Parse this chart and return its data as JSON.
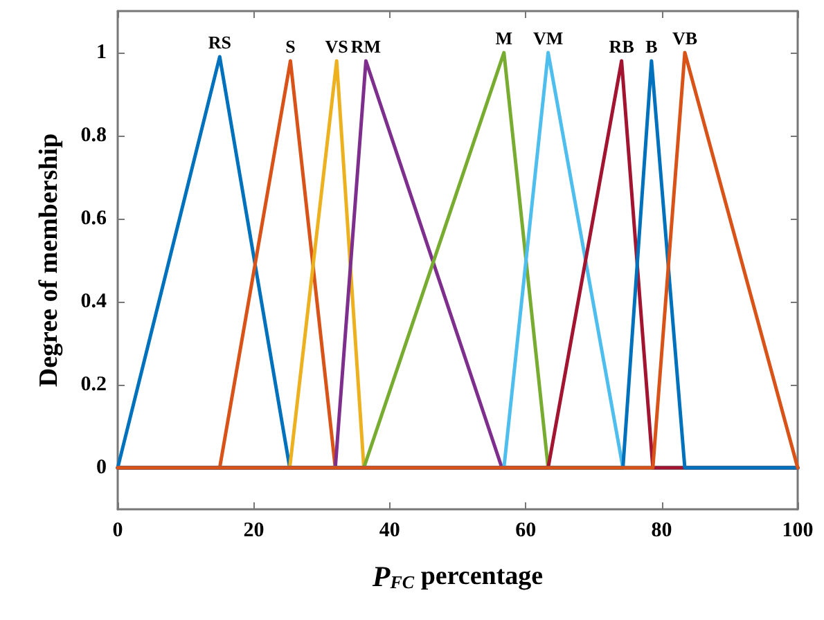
{
  "chart_data": {
    "type": "line",
    "xlabel": "P$_{FC}$ percentage",
    "ylabel": "Degree of membership",
    "xlim": [
      0,
      100
    ],
    "xticks": [
      0,
      20,
      40,
      60,
      80,
      100
    ],
    "ylim": [
      -0.1,
      1.1
    ],
    "yticks": [
      0,
      0.2,
      0.4,
      0.6,
      0.8,
      1
    ],
    "grid": false,
    "legend": false,
    "marker": "none",
    "line_style": "solid",
    "series": [
      {
        "name": "RS",
        "color": "#0072bd",
        "x": [
          0,
          15,
          25.3,
          100
        ],
        "values": [
          0,
          0.99,
          0,
          0
        ]
      },
      {
        "name": "S",
        "color": "#d95319",
        "x": [
          0,
          15,
          25.4,
          32,
          100
        ],
        "values": [
          0,
          0,
          0.98,
          0,
          0
        ]
      },
      {
        "name": "VS",
        "color": "#edb120",
        "x": [
          0,
          25.3,
          32.2,
          36.2,
          100
        ],
        "values": [
          0,
          0,
          0.98,
          0,
          0
        ]
      },
      {
        "name": "RM",
        "color": "#7e2f8e",
        "x": [
          0,
          32,
          36.5,
          56.5,
          100
        ],
        "values": [
          0,
          0,
          0.98,
          0,
          0
        ]
      },
      {
        "name": "M",
        "color": "#77ac30",
        "x": [
          0,
          36.2,
          56.8,
          63.3,
          100
        ],
        "values": [
          0,
          0,
          1,
          0,
          0
        ]
      },
      {
        "name": "VM",
        "color": "#4dbeee",
        "x": [
          0,
          56.8,
          63.3,
          74.3,
          100
        ],
        "values": [
          0,
          0,
          1,
          0,
          0
        ]
      },
      {
        "name": "RB",
        "color": "#a2142f",
        "x": [
          0,
          63.3,
          74.1,
          78.7,
          100
        ],
        "values": [
          0,
          0,
          0.98,
          0,
          0
        ]
      },
      {
        "name": "B",
        "color": "#0072bd",
        "x": [
          0,
          74.3,
          78.5,
          83.4,
          100
        ],
        "values": [
          0,
          0,
          0.98,
          0,
          0
        ]
      },
      {
        "name": "VB",
        "color": "#d95319",
        "x": [
          0,
          78.7,
          83.4,
          100
        ],
        "values": [
          0,
          0,
          1,
          0
        ]
      }
    ]
  }
}
